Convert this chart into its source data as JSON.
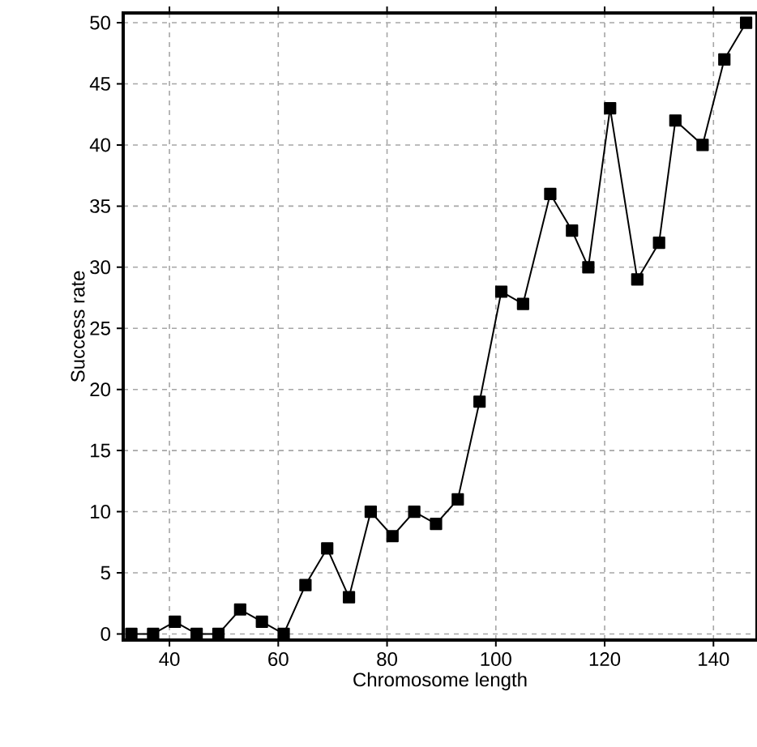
{
  "chart_data": {
    "type": "line",
    "xlabel": "Chromosome length",
    "ylabel": "Success rate",
    "x": [
      33,
      37,
      41,
      45,
      49,
      53,
      57,
      61,
      65,
      69,
      73,
      77,
      81,
      85,
      89,
      93,
      97,
      101,
      105,
      110,
      114,
      117,
      121,
      126,
      130,
      133,
      138,
      142,
      146
    ],
    "series": [
      {
        "color": "#000000",
        "values": [
          0,
          0,
          1,
          0,
          0,
          2,
          1,
          0,
          4,
          7,
          3,
          10,
          8,
          10,
          9,
          11,
          19,
          28,
          27,
          36,
          33,
          30,
          43,
          29,
          32,
          42,
          40,
          47,
          50
        ]
      }
    ],
    "xlim": [
      31.5,
      148
    ],
    "ylim": [
      -0.5,
      50.8
    ],
    "xticks": [
      40,
      60,
      80,
      100,
      120,
      140
    ],
    "yticks": [
      0,
      5,
      10,
      15,
      20,
      25,
      30,
      35,
      40,
      45,
      50
    ],
    "grid": true,
    "marker": "square",
    "line_style": "solid"
  }
}
